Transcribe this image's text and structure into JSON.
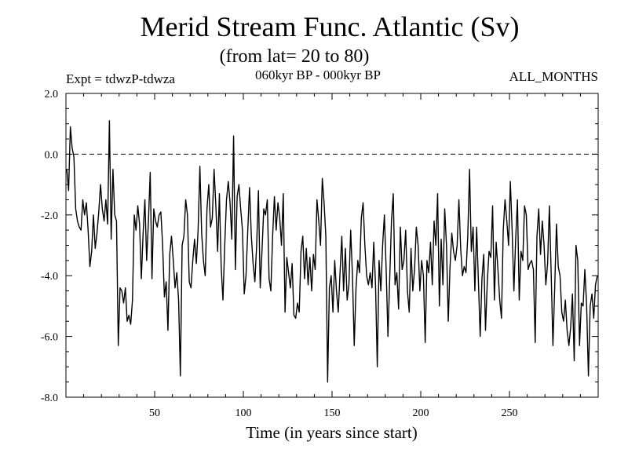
{
  "chart_data": {
    "type": "line",
    "title": "Merid Stream Func. Atlantic (Sv)",
    "subtitle": "(from lat= 20 to 80)",
    "annotation_left": "Expt = tdwzP-tdwza",
    "annotation_center": "060kyr BP - 000kyr BP",
    "annotation_right": "ALL_MONTHS",
    "xlabel": "Time (in years since start)",
    "ylabel": "",
    "xlim": [
      0,
      300
    ],
    "ylim": [
      -8.0,
      2.0
    ],
    "x_ticks": [
      50,
      100,
      150,
      200,
      250
    ],
    "x_tick_labels": [
      "50",
      "100",
      "150",
      "200",
      "250"
    ],
    "y_ticks": [
      2.0,
      0.0,
      -2.0,
      -4.0,
      -6.0,
      -8.0
    ],
    "y_tick_labels": [
      "2.0",
      "0.0",
      "-2.0",
      "-4.0",
      "-6.0",
      "-8.0"
    ],
    "reference_line": {
      "y": 0.0,
      "style": "dashed"
    },
    "grid": false,
    "legend": "none",
    "series": [
      {
        "x_start": 0.5,
        "x_step": 1,
        "values": [
          -0.5,
          -1.2,
          0.9,
          0.2,
          -0.1,
          -1.8,
          -2.2,
          -2.4,
          -2.5,
          -1.5,
          -2.0,
          -1.6,
          -2.5,
          -3.7,
          -3.2,
          -2.0,
          -3.1,
          -2.6,
          -1.9,
          -1.0,
          -1.8,
          -2.2,
          -1.5,
          -2.3,
          1.1,
          -2.8,
          -0.5,
          -2.0,
          -2.2,
          -6.3,
          -4.4,
          -4.5,
          -4.9,
          -4.4,
          -5.5,
          -5.3,
          -5.6,
          -4.8,
          -2.0,
          -2.5,
          -1.7,
          -2.3,
          -4.1,
          -2.6,
          -1.5,
          -3.5,
          -2.2,
          -0.6,
          -4.1,
          -1.8,
          -2.2,
          -2.4,
          -2.0,
          -1.9,
          -3.0,
          -4.7,
          -4.2,
          -5.8,
          -3.3,
          -2.7,
          -3.5,
          -4.4,
          -3.9,
          -4.8,
          -7.3,
          -3.0,
          -2.7,
          -1.5,
          -2.0,
          -4.2,
          -4.4,
          -3.5,
          -2.8,
          -3.6,
          -2.5,
          -0.4,
          -2.6,
          -3.5,
          -4.0,
          -1.8,
          -1.0,
          -2.4,
          -2.1,
          -0.5,
          -1.7,
          -3.2,
          -1.3,
          -3.7,
          -4.8,
          -3.0,
          -1.5,
          -0.9,
          -1.6,
          -2.8,
          0.6,
          -3.8,
          -1.4,
          -1.0,
          -1.8,
          -2.5,
          -4.6,
          -4.0,
          -2.5,
          -1.1,
          -2.7,
          -3.6,
          -4.2,
          -3.0,
          -1.2,
          -4.4,
          -3.2,
          -1.8,
          -2.0,
          -1.5,
          -4.1,
          -4.5,
          -2.7,
          -1.4,
          -2.5,
          -1.6,
          -2.1,
          -3.0,
          -1.3,
          -5.2,
          -3.4,
          -3.9,
          -4.4,
          -3.6,
          -5.3,
          -5.4,
          -4.9,
          -5.2,
          -3.2,
          -2.7,
          -4.1,
          -3.1,
          -4.3,
          -3.4,
          -4.5,
          -3.3,
          -3.8,
          -1.5,
          -2.2,
          -3.0,
          -0.8,
          -1.6,
          -2.7,
          -7.5,
          -4.4,
          -4.0,
          -5.2,
          -3.5,
          -4.5,
          -5.2,
          -3.9,
          -2.7,
          -4.5,
          -3.1,
          -4.8,
          -4.3,
          -2.5,
          -4.0,
          -6.3,
          -4.4,
          -3.5,
          -3.9,
          -2.1,
          -1.6,
          -3.0,
          -4.0,
          -4.3,
          -3.9,
          -4.4,
          -2.9,
          -4.3,
          -7.0,
          -3.5,
          -4.5,
          -3.0,
          -2.0,
          -3.8,
          -6.0,
          -4.1,
          -2.2,
          -1.3,
          -4.3,
          -3.9,
          -5.1,
          -2.4,
          -3.8,
          -3.5,
          -2.5,
          -4.5,
          -5.2,
          -3.1,
          -4.5,
          -3.8,
          -2.4,
          -3.0,
          -4.5,
          -3.5,
          -4.0,
          -6.2,
          -3.5,
          -3.9,
          -2.9,
          -4.3,
          -2.2,
          -3.0,
          -1.3,
          -5.0,
          -2.8,
          -4.3,
          -1.8,
          -3.0,
          -5.5,
          -3.7,
          -2.6,
          -3.2,
          -3.5,
          -3.0,
          -1.5,
          -3.1,
          -4.0,
          -3.7,
          -3.9,
          -2.7,
          -0.5,
          -3.2,
          -2.4,
          -4.5,
          -2.4,
          -4.2,
          -6.0,
          -4.1,
          -3.3,
          -5.8,
          -4.2,
          -3.2,
          -3.4,
          -1.7,
          -4.8,
          -2.9,
          -3.8,
          -4.8,
          -5.4,
          -2.5,
          -1.5,
          -2.2,
          -3.0,
          -0.9,
          -2.5,
          -4.5,
          -2.8,
          -1.5,
          -4.8,
          -3.2,
          -3.5,
          -1.7,
          -2.0,
          -3.8,
          -3.6,
          -3.5,
          -3.8,
          -6.2,
          -2.7,
          -1.8,
          -3.3,
          -2.2,
          -3.0,
          -4.3,
          -3.6,
          -1.7,
          -3.9,
          -6.3,
          -4.4,
          -2.3,
          -3.7,
          -4.0,
          -5.2,
          -5.5,
          -4.8,
          -5.8,
          -6.3,
          -5.7,
          -4.6,
          -6.8,
          -3.0,
          -3.5,
          -6.3,
          -4.9,
          -5.0,
          -3.8,
          -5.0,
          -7.3,
          -5.0,
          -4.6,
          -5.4,
          -4.3,
          -4.0
        ]
      }
    ]
  }
}
